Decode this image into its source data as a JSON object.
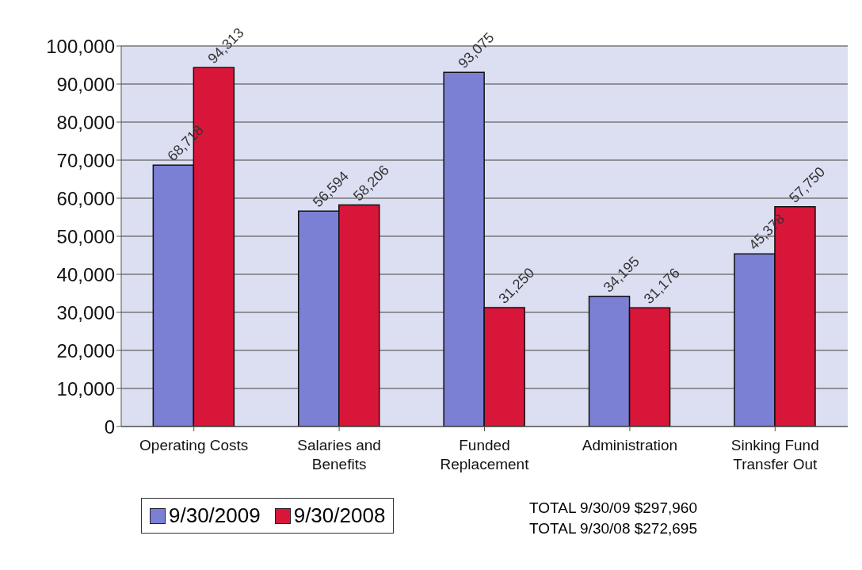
{
  "chart_data": {
    "type": "bar",
    "categories": [
      "Operating Costs",
      "Salaries and Benefits",
      "Funded Replacement",
      "Administration",
      "Sinking Fund Transfer Out"
    ],
    "series": [
      {
        "name": "9/30/2009",
        "color": "#7b80d4",
        "values": [
          68718,
          56594,
          93075,
          34195,
          45378
        ],
        "value_labels": [
          "68,718",
          "56,594",
          "93,075",
          "34,195",
          "45,378"
        ]
      },
      {
        "name": "9/30/2008",
        "color": "#d8163a",
        "values": [
          94313,
          58206,
          31250,
          31176,
          57750
        ],
        "value_labels": [
          "94,313",
          "58,206",
          "31,250",
          "31,176",
          "57,750"
        ]
      }
    ],
    "ylim": [
      0,
      100000
    ],
    "yticks": [
      {
        "value": 0,
        "label": "0"
      },
      {
        "value": 10000,
        "label": "10,000"
      },
      {
        "value": 20000,
        "label": "20,000"
      },
      {
        "value": 30000,
        "label": "30,000"
      },
      {
        "value": 40000,
        "label": "40,000"
      },
      {
        "value": 50000,
        "label": "50,000"
      },
      {
        "value": 60000,
        "label": "60,000"
      },
      {
        "value": 70000,
        "label": "70,000"
      },
      {
        "value": 80000,
        "label": "80,000"
      },
      {
        "value": 90000,
        "label": "90,000"
      },
      {
        "value": 100000,
        "label": "100,000"
      }
    ],
    "grid": "y",
    "legend": "bottom left",
    "annotations": [
      "TOTAL 9/30/09 $297,960",
      "TOTAL 9/30/08 $272,695"
    ]
  }
}
